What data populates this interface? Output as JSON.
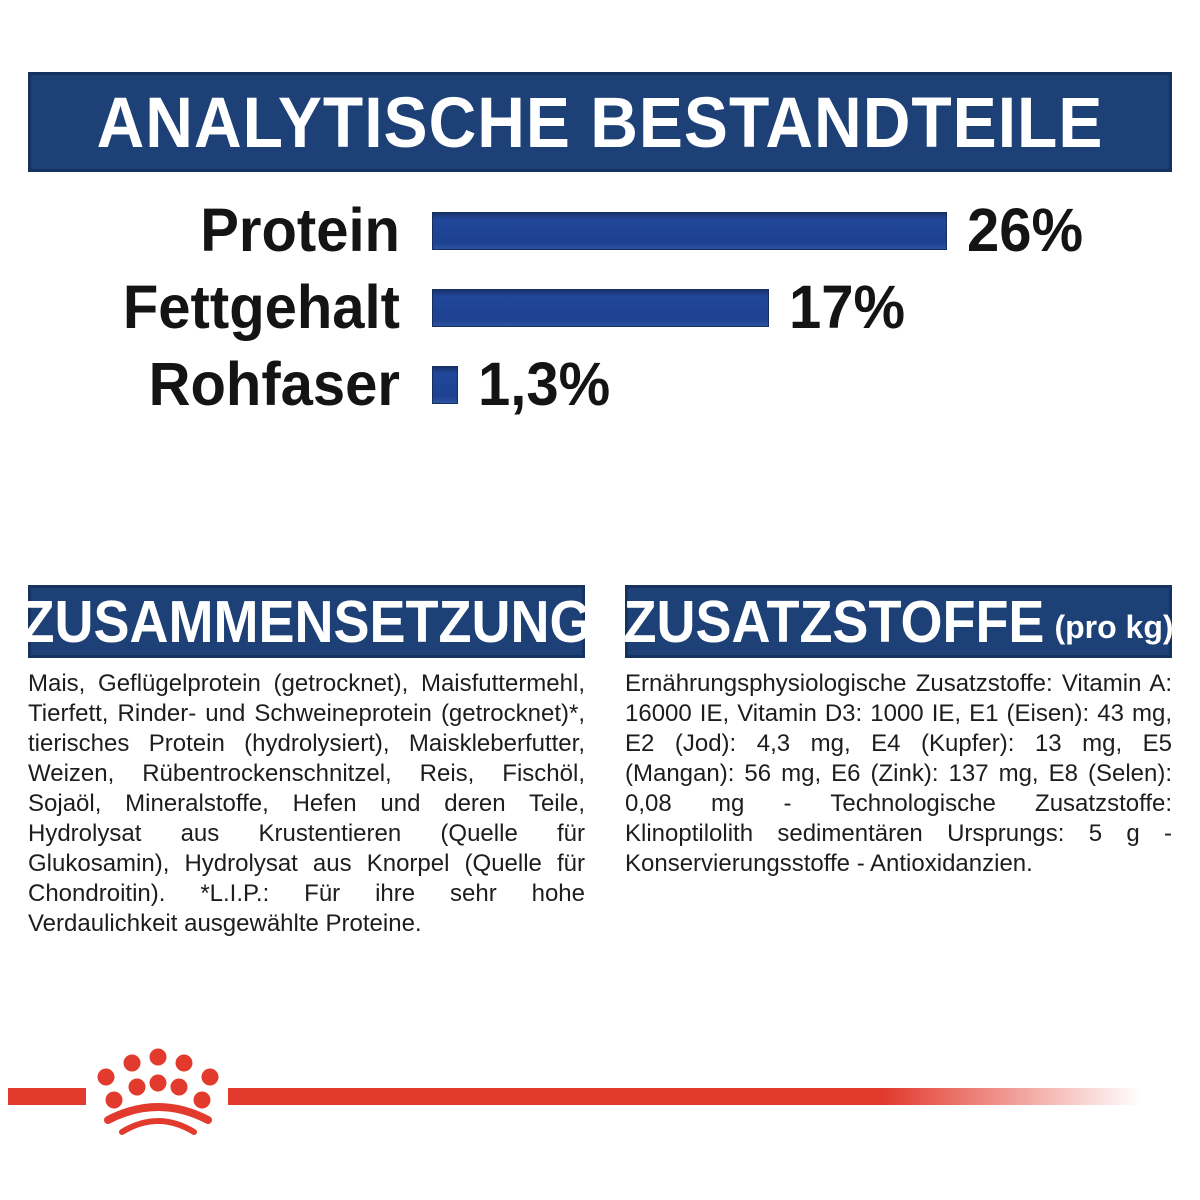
{
  "header": {
    "title": "ANALYTISCHE BESTANDTEILE"
  },
  "chart_data": {
    "type": "bar",
    "orientation": "horizontal",
    "title": "ANALYTISCHE BESTANDTEILE",
    "categories": [
      "Protein",
      "Fettgehalt",
      "Rohfaser"
    ],
    "values": [
      26,
      17,
      1.3
    ],
    "value_labels": [
      "26%",
      "17%",
      "1,3%"
    ],
    "unit": "%",
    "xlim": [
      0,
      26
    ],
    "grid": false,
    "legend": false,
    "bar_color": "#1e4190"
  },
  "composition": {
    "title": "ZUSAMMENSETZUNG",
    "body": "Mais, Geflügelprotein (getrocknet), Maisfuttermehl, Tierfett, Rinder- und Schweineprotein (getrocknet)*, tierisches Protein (hydrolysiert), Maiskleberfutter, Weizen, Rübentrockenschnitzel, Reis, Fischöl, Sojaöl, Mineralstoffe, Hefen und deren Teile, Hydrolysat aus Krustentieren (Quelle für Glukosamin), Hydrolysat aus Knorpel (Quelle für Chondroitin). *L.I.P.: Für ihre sehr hohe Verdaulichkeit ausgewählte Proteine."
  },
  "additives": {
    "title": "ZUSATZSTOFFE",
    "title_suffix": "(pro kg)",
    "body": "Ernährungsphysiologische Zusatzstoffe: Vitamin A: 16000 IE, Vitamin D3: 1000 IE, E1 (Eisen): 43 mg, E2 (Jod): 4,3 mg, E4 (Kupfer): 13 mg, E5 (Mangan): 56 mg, E6 (Zink): 137 mg, E8 (Selen): 0,08 mg - Technologische Zusatzstoffe: Klinoptilolith sedimentären Ursprungs: 5 g - Konservierungsstoffe - Antioxidanzien."
  },
  "footer": {
    "logo": "royal-canin-crown"
  },
  "colors": {
    "banner_blue": "#1d4077",
    "banner_border": "#16325e",
    "bar_blue": "#1e4190",
    "brand_red": "#e23b2e",
    "text_dark": "#1d1d1d"
  }
}
